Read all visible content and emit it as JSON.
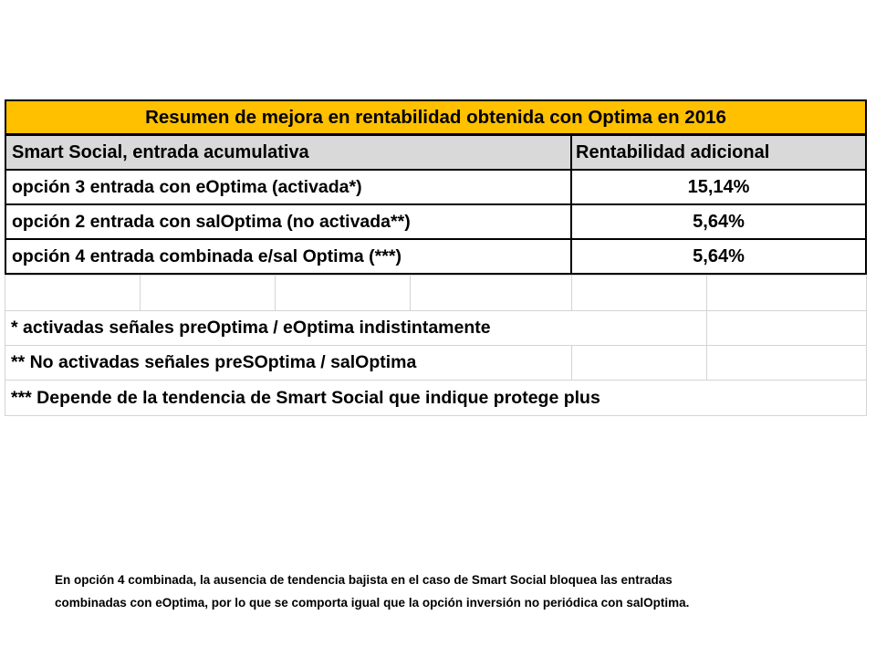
{
  "table": {
    "title": "Resumen de mejora en rentabilidad obtenida con Optima en 2016",
    "header": {
      "col1": "Smart Social, entrada acumulativa",
      "col2": "Rentabilidad adicional"
    },
    "rows": [
      {
        "label": "opción 3 entrada con eOptima  (activada*)",
        "value": "15,14%"
      },
      {
        "label": "opción 2 entrada con salOptima (no activada**)",
        "value": "5,64%"
      },
      {
        "label": "opción 4 entrada combinada e/sal Optima (***)",
        "value": "5,64%"
      }
    ],
    "notes": [
      "* activadas señales preOptima / eOptima indistintamente",
      "** No activadas señales preSOptima / salOptima",
      "*** Depende de la tendencia de Smart Social que indique protege plus"
    ],
    "title_color": "#ffc000",
    "header_color": "#d9d9d9"
  },
  "footnote": {
    "line1": "En opción 4 combinada, la ausencia de tendencia bajista en el caso de Smart Social bloquea las entradas",
    "line2": "combinadas con eOptima, por lo que se comporta igual que la opción inversión no periódica con salOptima."
  }
}
